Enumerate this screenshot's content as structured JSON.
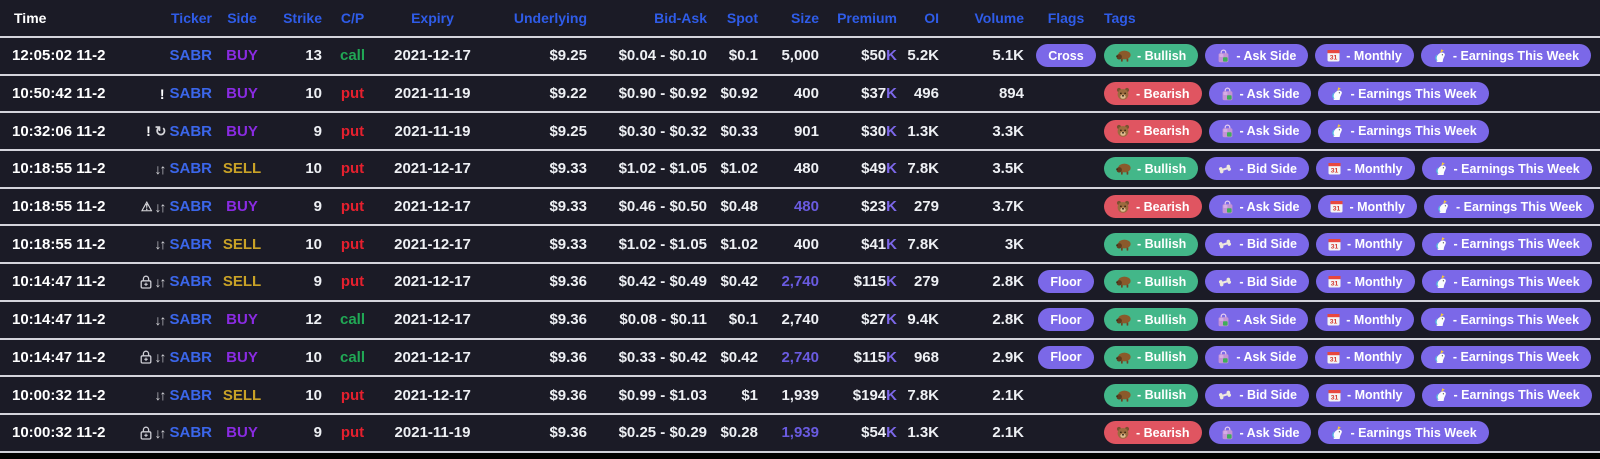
{
  "colors": {
    "header_text": "#2f5ce8",
    "ticker": "#3b66ea",
    "buy": "#8a2be2",
    "sell": "#c9a227",
    "call": "#21a855",
    "put": "#e5202e",
    "tag_pill": "#7b68e8",
    "bullish_pill": "#43b789",
    "bearish_pill": "#e05561",
    "size_highlight": "#6a5be0",
    "premium_suffix": "#7d68ea",
    "row_background": "#1b1b26"
  },
  "columns": [
    {
      "key": "time",
      "label": "Time"
    },
    {
      "key": "ticker",
      "label": "Ticker"
    },
    {
      "key": "side",
      "label": "Side"
    },
    {
      "key": "strike",
      "label": "Strike"
    },
    {
      "key": "cp",
      "label": "C/P"
    },
    {
      "key": "expiry",
      "label": "Expiry"
    },
    {
      "key": "underlying",
      "label": "Underlying"
    },
    {
      "key": "bid_ask",
      "label": "Bid-Ask"
    },
    {
      "key": "spot",
      "label": "Spot"
    },
    {
      "key": "size",
      "label": "Size"
    },
    {
      "key": "premium",
      "label": "Premium"
    },
    {
      "key": "oi",
      "label": "OI"
    },
    {
      "key": "volume",
      "label": "Volume"
    },
    {
      "key": "flags",
      "label": "Flags"
    },
    {
      "key": "tags",
      "label": "Tags"
    }
  ],
  "tag_defs": {
    "bullish": {
      "label": "- Bullish",
      "icon": "bison-icon",
      "style": "green"
    },
    "bearish": {
      "label": "- Bearish",
      "icon": "bear-icon",
      "style": "red"
    },
    "ask": {
      "label": "- Ask Side",
      "icon": "shopping-bag-icon",
      "style": "purple"
    },
    "bid": {
      "label": "- Bid Side",
      "icon": "bone-icon",
      "style": "purple"
    },
    "monthly": {
      "label": "- Monthly",
      "icon": "calendar-icon",
      "style": "purple"
    },
    "earnings": {
      "label": "- Earnings This Week",
      "icon": "unicorn-icon",
      "style": "purple"
    }
  },
  "rows": [
    {
      "time": "12:05:02 11-2",
      "ticker_icons": [],
      "ticker": "SABR",
      "side": "BUY",
      "strike": "13",
      "cp": "call",
      "expiry": "2021-12-17",
      "underlying": "$9.25",
      "bid_ask": "$0.04 - $0.10",
      "spot": "$0.1",
      "size": "5,000",
      "size_highlight": false,
      "premium": "$50",
      "premium_suffix": "K",
      "oi": "5.2K",
      "volume": "5.1K",
      "flags": [
        "Cross"
      ],
      "tags": [
        "bullish",
        "ask",
        "monthly",
        "earnings"
      ]
    },
    {
      "time": "10:50:42 11-2",
      "ticker_icons": [
        "exclamation-icon"
      ],
      "ticker": "SABR",
      "side": "BUY",
      "strike": "10",
      "cp": "put",
      "expiry": "2021-11-19",
      "underlying": "$9.22",
      "bid_ask": "$0.90 - $0.92",
      "spot": "$0.92",
      "size": "400",
      "size_highlight": false,
      "premium": "$37",
      "premium_suffix": "K",
      "oi": "496",
      "volume": "894",
      "flags": [],
      "tags": [
        "bearish",
        "ask",
        "earnings"
      ]
    },
    {
      "time": "10:32:06 11-2",
      "ticker_icons": [
        "exclamation-icon",
        "retry-icon"
      ],
      "ticker": "SABR",
      "side": "BUY",
      "strike": "9",
      "cp": "put",
      "expiry": "2021-11-19",
      "underlying": "$9.25",
      "bid_ask": "$0.30 - $0.32",
      "spot": "$0.33",
      "size": "901",
      "size_highlight": false,
      "premium": "$30",
      "premium_suffix": "K",
      "oi": "1.3K",
      "volume": "3.3K",
      "flags": [],
      "tags": [
        "bearish",
        "ask",
        "earnings"
      ]
    },
    {
      "time": "10:18:55 11-2",
      "ticker_icons": [
        "updown-arrows-icon"
      ],
      "ticker": "SABR",
      "side": "SELL",
      "strike": "10",
      "cp": "put",
      "expiry": "2021-12-17",
      "underlying": "$9.33",
      "bid_ask": "$1.02 - $1.05",
      "spot": "$1.02",
      "size": "480",
      "size_highlight": false,
      "premium": "$49",
      "premium_suffix": "K",
      "oi": "7.8K",
      "volume": "3.5K",
      "flags": [],
      "tags": [
        "bullish",
        "bid",
        "monthly",
        "earnings"
      ]
    },
    {
      "time": "10:18:55 11-2",
      "ticker_icons": [
        "warning-icon",
        "updown-arrows-icon"
      ],
      "ticker": "SABR",
      "side": "BUY",
      "strike": "9",
      "cp": "put",
      "expiry": "2021-12-17",
      "underlying": "$9.33",
      "bid_ask": "$0.46 - $0.50",
      "spot": "$0.48",
      "size": "480",
      "size_highlight": true,
      "premium": "$23",
      "premium_suffix": "K",
      "oi": "279",
      "volume": "3.7K",
      "flags": [],
      "tags": [
        "bearish",
        "ask",
        "monthly",
        "earnings"
      ]
    },
    {
      "time": "10:18:55 11-2",
      "ticker_icons": [
        "updown-arrows-icon"
      ],
      "ticker": "SABR",
      "side": "SELL",
      "strike": "10",
      "cp": "put",
      "expiry": "2021-12-17",
      "underlying": "$9.33",
      "bid_ask": "$1.02 - $1.05",
      "spot": "$1.02",
      "size": "400",
      "size_highlight": false,
      "premium": "$41",
      "premium_suffix": "K",
      "oi": "7.8K",
      "volume": "3K",
      "flags": [],
      "tags": [
        "bullish",
        "bid",
        "monthly",
        "earnings"
      ]
    },
    {
      "time": "10:14:47 11-2",
      "ticker_icons": [
        "lock-icon",
        "updown-arrows-icon"
      ],
      "ticker": "SABR",
      "side": "SELL",
      "strike": "9",
      "cp": "put",
      "expiry": "2021-12-17",
      "underlying": "$9.36",
      "bid_ask": "$0.42 - $0.49",
      "spot": "$0.42",
      "size": "2,740",
      "size_highlight": true,
      "premium": "$115",
      "premium_suffix": "K",
      "oi": "279",
      "volume": "2.8K",
      "flags": [
        "Floor"
      ],
      "tags": [
        "bullish",
        "bid",
        "monthly",
        "earnings"
      ]
    },
    {
      "time": "10:14:47 11-2",
      "ticker_icons": [
        "updown-arrows-icon"
      ],
      "ticker": "SABR",
      "side": "BUY",
      "strike": "12",
      "cp": "call",
      "expiry": "2021-12-17",
      "underlying": "$9.36",
      "bid_ask": "$0.08 - $0.11",
      "spot": "$0.1",
      "size": "2,740",
      "size_highlight": false,
      "premium": "$27",
      "premium_suffix": "K",
      "oi": "9.4K",
      "volume": "2.8K",
      "flags": [
        "Floor"
      ],
      "tags": [
        "bullish",
        "ask",
        "monthly",
        "earnings"
      ]
    },
    {
      "time": "10:14:47 11-2",
      "ticker_icons": [
        "lock-icon",
        "updown-arrows-icon"
      ],
      "ticker": "SABR",
      "side": "BUY",
      "strike": "10",
      "cp": "call",
      "expiry": "2021-12-17",
      "underlying": "$9.36",
      "bid_ask": "$0.33 - $0.42",
      "spot": "$0.42",
      "size": "2,740",
      "size_highlight": true,
      "premium": "$115",
      "premium_suffix": "K",
      "oi": "968",
      "volume": "2.9K",
      "flags": [
        "Floor"
      ],
      "tags": [
        "bullish",
        "ask",
        "monthly",
        "earnings"
      ]
    },
    {
      "time": "10:00:32 11-2",
      "ticker_icons": [
        "updown-arrows-icon"
      ],
      "ticker": "SABR",
      "side": "SELL",
      "strike": "10",
      "cp": "put",
      "expiry": "2021-12-17",
      "underlying": "$9.36",
      "bid_ask": "$0.99 - $1.03",
      "spot": "$1",
      "size": "1,939",
      "size_highlight": false,
      "premium": "$194",
      "premium_suffix": "K",
      "oi": "7.8K",
      "volume": "2.1K",
      "flags": [],
      "tags": [
        "bullish",
        "bid",
        "monthly",
        "earnings"
      ]
    },
    {
      "time": "10:00:32 11-2",
      "ticker_icons": [
        "lock-icon",
        "updown-arrows-icon"
      ],
      "ticker": "SABR",
      "side": "BUY",
      "strike": "9",
      "cp": "put",
      "expiry": "2021-11-19",
      "underlying": "$9.36",
      "bid_ask": "$0.25 - $0.29",
      "spot": "$0.28",
      "size": "1,939",
      "size_highlight": true,
      "premium": "$54",
      "premium_suffix": "K",
      "oi": "1.3K",
      "volume": "2.1K",
      "flags": [],
      "tags": [
        "bearish",
        "ask",
        "earnings"
      ]
    }
  ]
}
